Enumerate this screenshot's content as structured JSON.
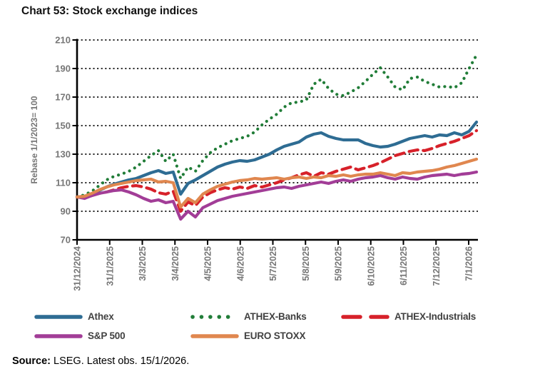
{
  "title": "Chart 53: Stock exchange indices",
  "source": {
    "label": "Source:",
    "text": " LSEG. Latest obs. 15/1/2026."
  },
  "chart_data": {
    "type": "line",
    "title": "Chart 53: Stock exchange indices",
    "ylabel": "Rebase 1/1/2023= 100",
    "ylim": [
      70,
      210
    ],
    "yticks": [
      70,
      90,
      110,
      130,
      150,
      170,
      190,
      210
    ],
    "grid": "horizontal-dotted",
    "legend_position": "bottom",
    "axis_color": "#000000",
    "tick_label_color": "#767676",
    "x_tick_labels": [
      "31/12/2024",
      "31/1/2025",
      "3/3/2025",
      "3/4/2025",
      "4/5/2025",
      "4/6/2025",
      "5/7/2025",
      "5/8/2025",
      "5/9/2025",
      "6/10/2025",
      "6/11/2025",
      "7/12/2025",
      "7/1/2026"
    ],
    "x_sampling": "weekly, 55 points from 31/12/2024 to 15/1/2026",
    "series": [
      {
        "name": "Athex",
        "color": "#2E6C93",
        "style": "solid",
        "values": [
          100,
          100.5,
          102,
          104.5,
          107,
          109,
          110.5,
          112,
          113,
          115,
          117,
          118.5,
          116.5,
          117.5,
          102,
          109.5,
          112,
          115,
          118,
          121,
          123,
          124.5,
          125.5,
          125,
          126,
          128,
          130,
          133,
          135.5,
          137,
          138.5,
          142,
          144,
          145,
          142.5,
          141,
          140,
          140,
          140,
          137.5,
          136,
          135,
          135.5,
          137,
          139,
          141,
          142,
          143,
          142,
          143.5,
          143,
          145,
          143.5,
          146,
          152.5
        ]
      },
      {
        "name": "ATHEX-Banks",
        "color": "#217D38",
        "style": "dotted",
        "values": [
          100,
          101.5,
          104,
          108,
          112,
          114.5,
          116,
          118,
          121,
          125,
          129,
          132.5,
          125,
          130,
          113,
          121,
          118,
          125.5,
          131,
          134.5,
          137,
          139.5,
          141,
          142.5,
          145.5,
          150.5,
          154.5,
          158,
          163,
          166,
          166.5,
          168,
          179,
          182.5,
          176,
          172,
          171,
          173.5,
          176.5,
          181,
          186,
          190.5,
          184,
          177,
          175,
          183,
          184,
          181,
          179,
          177,
          177.5,
          176.5,
          180,
          190,
          199.5
        ]
      },
      {
        "name": "ATHEX-Industrials",
        "color": "#D7212A",
        "style": "dashed",
        "values": [
          100,
          99.5,
          101,
          102.5,
          103.5,
          105,
          106.5,
          107.5,
          108,
          107,
          105.5,
          103,
          102,
          104,
          90,
          96.5,
          94,
          100,
          103,
          105,
          106.5,
          105.5,
          107,
          106,
          108,
          107,
          108.5,
          110,
          112,
          113.5,
          115.5,
          117,
          114.5,
          117,
          116,
          118,
          119.5,
          121,
          119,
          120.5,
          122,
          124,
          126.5,
          129,
          130.5,
          132,
          133,
          132.5,
          134,
          136,
          137.5,
          139,
          141,
          143,
          146.5
        ]
      },
      {
        "name": "S&P 500",
        "color": "#A23D97",
        "style": "solid",
        "values": [
          100,
          99,
          101,
          102.5,
          103.5,
          104.5,
          105,
          103.5,
          101.5,
          99,
          97,
          98,
          96,
          97,
          84.5,
          90,
          86,
          92.5,
          95,
          97.5,
          99,
          100.5,
          101.5,
          102.5,
          103.5,
          104.5,
          105.5,
          106.5,
          107,
          106,
          107.5,
          108.5,
          109.5,
          110.5,
          109.5,
          111,
          112,
          111,
          112.5,
          113.5,
          114,
          115,
          113.5,
          112.5,
          114,
          113,
          112.5,
          114,
          115,
          115.5,
          116,
          115,
          116,
          116.5,
          117.5
        ]
      },
      {
        "name": "EURO STOXX",
        "color": "#E0874F",
        "style": "solid",
        "values": [
          100,
          100.5,
          102.5,
          105,
          107,
          108.5,
          109.5,
          110.5,
          111.5,
          112,
          112.5,
          110.5,
          111,
          110,
          93,
          99,
          96,
          102,
          105,
          107.5,
          109,
          110.5,
          111.5,
          112,
          113,
          112.5,
          113,
          113.5,
          112.5,
          113.5,
          114,
          113,
          114,
          113.5,
          115,
          114.5,
          115.5,
          114.5,
          115.5,
          116,
          116,
          117,
          116,
          115,
          117,
          116.5,
          117.5,
          118,
          118.5,
          119.5,
          121,
          122,
          123.5,
          125,
          126.5
        ]
      }
    ]
  }
}
